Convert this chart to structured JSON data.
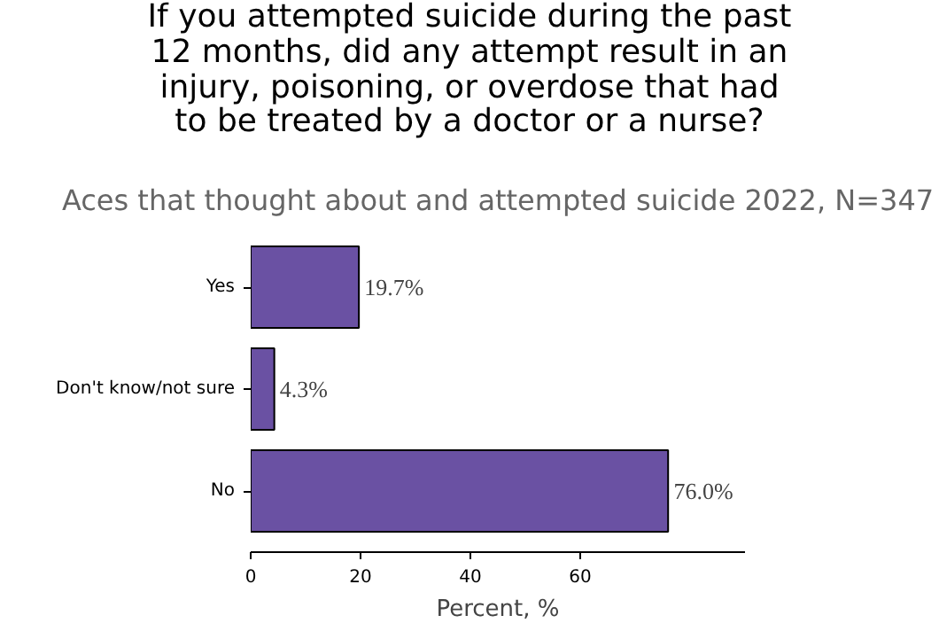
{
  "chart_data": {
    "type": "bar",
    "orientation": "horizontal",
    "title": "If you attempted suicide during the past 12 months, did any attempt result in an injury, poisoning, or overdose that had to be treated by a doctor or a nurse?",
    "subtitle": "Aces that thought about and attempted suicide 2022, N=347",
    "xlabel": "Percent, %",
    "categories": [
      "Yes",
      "Don't know/not sure",
      "No"
    ],
    "values": [
      19.7,
      4.3,
      76.0
    ],
    "color": "#6a51a3",
    "value_labels": [
      "19.7%",
      "4.3%",
      "76.0%"
    ],
    "xlim": [
      0,
      90
    ],
    "xticks": [
      0,
      20,
      40,
      60
    ],
    "grid": false
  }
}
